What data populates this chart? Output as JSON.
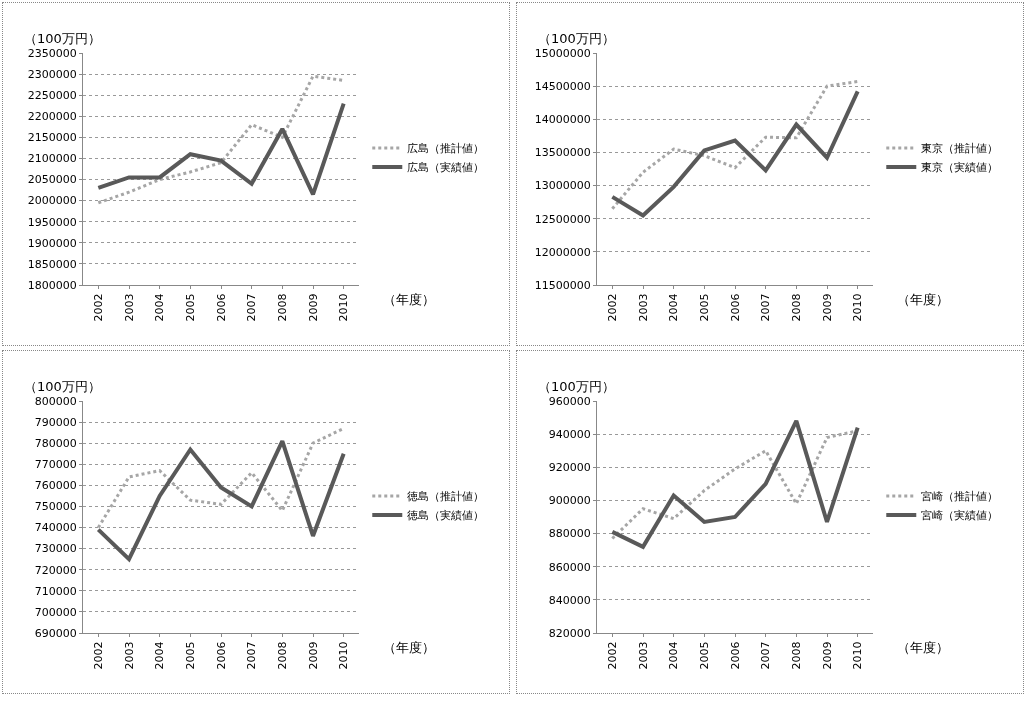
{
  "chart_data": [
    {
      "type": "line",
      "ylabel": "（100万円）",
      "xlabel": "（年度）",
      "categories": [
        "2002",
        "2003",
        "2004",
        "2005",
        "2006",
        "2007",
        "2008",
        "2009",
        "2010"
      ],
      "ylim": [
        1800000,
        2350000
      ],
      "yticks": [
        1800000,
        1850000,
        1900000,
        1950000,
        2000000,
        2050000,
        2100000,
        2150000,
        2200000,
        2250000,
        2300000,
        2350000
      ],
      "grid": "y",
      "legend": "right",
      "marker": "none",
      "series": [
        {
          "name": "広島（推計値）",
          "color": "#a6a6a6",
          "line_style": "dotted",
          "values": [
            1995000,
            2020000,
            2050000,
            2068000,
            2090000,
            2180000,
            2150000,
            2295000,
            2285000
          ]
        },
        {
          "name": "広島（実績値）",
          "color": "#595959",
          "line_style": "solid",
          "values": [
            2030000,
            2055000,
            2055000,
            2110000,
            2095000,
            2040000,
            2170000,
            2015000,
            2230000
          ]
        }
      ]
    },
    {
      "type": "line",
      "ylabel": "（100万円）",
      "xlabel": "（年度）",
      "categories": [
        "2002",
        "2003",
        "2004",
        "2005",
        "2006",
        "2007",
        "2008",
        "2009",
        "2010"
      ],
      "ylim": [
        11500000,
        15000000
      ],
      "yticks": [
        11500000,
        12000000,
        12500000,
        13000000,
        13500000,
        14000000,
        14500000,
        15000000
      ],
      "grid": "y",
      "legend": "right",
      "marker": "none",
      "series": [
        {
          "name": "東京（推計値）",
          "color": "#a6a6a6",
          "line_style": "dotted",
          "values": [
            12650000,
            13200000,
            13550000,
            13450000,
            13270000,
            13730000,
            13720000,
            14500000,
            14570000
          ]
        },
        {
          "name": "東京（実績値）",
          "color": "#595959",
          "line_style": "solid",
          "values": [
            12830000,
            12550000,
            12980000,
            13530000,
            13680000,
            13230000,
            13920000,
            13420000,
            14420000
          ]
        }
      ]
    },
    {
      "type": "line",
      "ylabel": "（100万円）",
      "xlabel": "（年度）",
      "categories": [
        "2002",
        "2003",
        "2004",
        "2005",
        "2006",
        "2007",
        "2008",
        "2009",
        "2010"
      ],
      "ylim": [
        690000,
        800000
      ],
      "yticks": [
        690000,
        700000,
        710000,
        720000,
        730000,
        740000,
        750000,
        760000,
        770000,
        780000,
        790000,
        800000
      ],
      "grid": "y",
      "legend": "right",
      "marker": "none",
      "series": [
        {
          "name": "徳島（推計値）",
          "color": "#a6a6a6",
          "line_style": "dotted",
          "values": [
            740000,
            764000,
            767000,
            753000,
            751000,
            766000,
            748000,
            780000,
            787000
          ]
        },
        {
          "name": "徳島（実績値）",
          "color": "#595959",
          "line_style": "solid",
          "values": [
            739000,
            725000,
            755000,
            777000,
            759000,
            750000,
            781000,
            736000,
            775000
          ]
        }
      ]
    },
    {
      "type": "line",
      "ylabel": "（100万円）",
      "xlabel": "（年度）",
      "categories": [
        "2002",
        "2003",
        "2004",
        "2005",
        "2006",
        "2007",
        "2008",
        "2009",
        "2010"
      ],
      "ylim": [
        820000,
        960000
      ],
      "yticks": [
        820000,
        840000,
        860000,
        880000,
        900000,
        920000,
        940000,
        960000
      ],
      "grid": "y",
      "legend": "right",
      "marker": "none",
      "series": [
        {
          "name": "宮崎（推計値）",
          "color": "#a6a6a6",
          "line_style": "dotted",
          "values": [
            877000,
            895000,
            889000,
            906000,
            919000,
            930000,
            898000,
            938000,
            942000
          ]
        },
        {
          "name": "宮崎（実績値）",
          "color": "#595959",
          "line_style": "solid",
          "values": [
            881000,
            872000,
            903000,
            887000,
            890000,
            910000,
            948000,
            887000,
            944000
          ]
        }
      ]
    }
  ]
}
